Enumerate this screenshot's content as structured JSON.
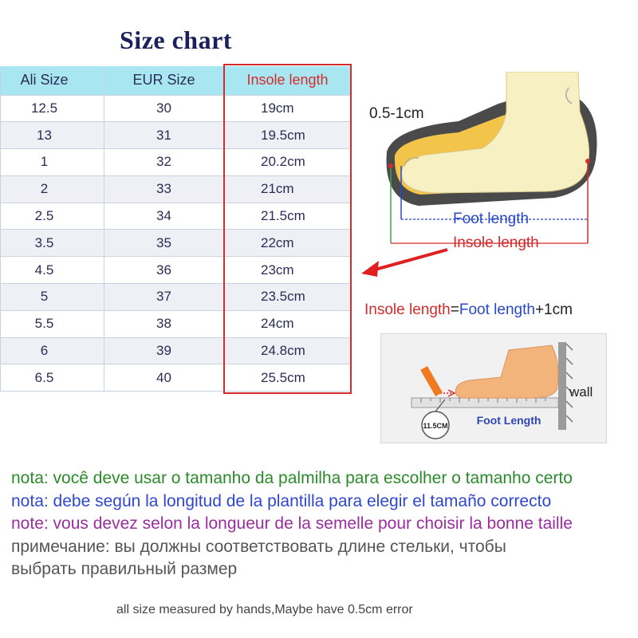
{
  "title": "Size chart",
  "table": {
    "headers": [
      "Ali Size",
      "EUR Size",
      "Insole length"
    ],
    "rows": [
      [
        "12.5",
        "30",
        "19cm"
      ],
      [
        "13",
        "31",
        "19.5cm"
      ],
      [
        "1",
        "32",
        "20.2cm"
      ],
      [
        "2",
        "33",
        "21cm"
      ],
      [
        "2.5",
        "34",
        "21.5cm"
      ],
      [
        "3.5",
        "35",
        "22cm"
      ],
      [
        "4.5",
        "36",
        "23cm"
      ],
      [
        "5",
        "37",
        "23.5cm"
      ],
      [
        "5.5",
        "38",
        "24cm"
      ],
      [
        "6",
        "39",
        "24.8cm"
      ],
      [
        "6.5",
        "40",
        "25.5cm"
      ]
    ]
  },
  "diagram": {
    "margin_label": "0.5-1cm",
    "foot_length_label": "Foot length",
    "insole_length_label": "Insole length"
  },
  "formula": {
    "left": "Insole length",
    "equals": "=",
    "foot": "Foot length",
    "plus": "+1cm"
  },
  "photo": {
    "wall_label": "wall",
    "ruler_label": "Foot Length",
    "marker_label": "11.5CM"
  },
  "notes": {
    "pt": "nota: você deve usar o tamanho da palmilha para escolher o tamanho certo",
    "es": "nota: debe según la longitud de la plantilla para elegir el tamaño correcto",
    "fr": "note: vous devez selon la longueur de la semelle pour choisir la bonne taille",
    "ru_line1": "примечание: вы должны соответствовать длине стельки, чтобы",
    "ru_line2": "выбрать правильный размер"
  },
  "footer": "all size measured by hands,Maybe have 0.5cm error",
  "colors": {
    "title": "#1b1f5c",
    "header_bg": "#a8e6f2",
    "insole_red": "#d42b2b",
    "foot_blue": "#2848c8",
    "note_pt": "#2b8a2b",
    "note_es": "#2f47d0",
    "note_fr": "#9a2ea0"
  }
}
